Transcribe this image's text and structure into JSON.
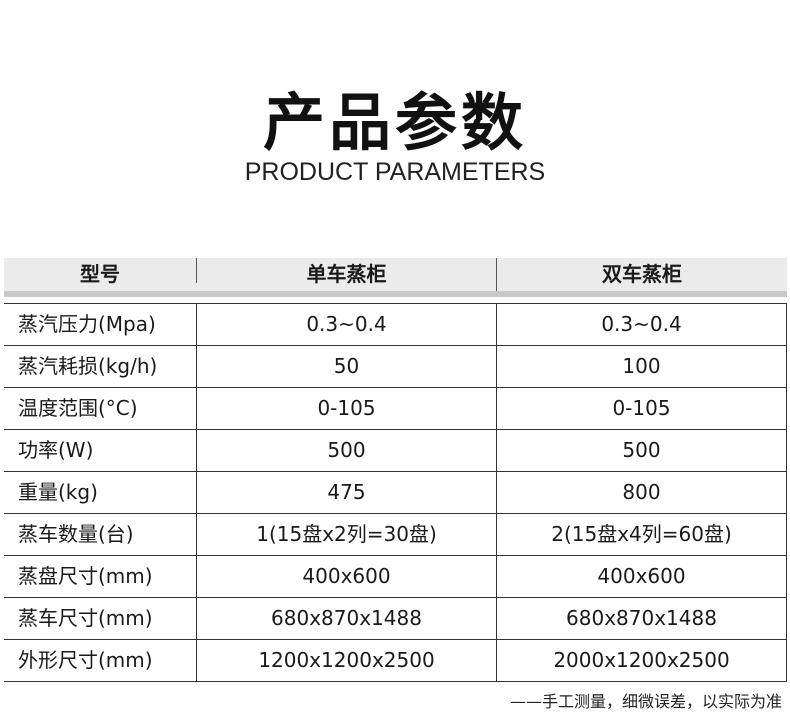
{
  "title": "产品参数",
  "subtitle": "PRODUCT PARAMETERS",
  "table": {
    "headers": [
      "型号",
      "单车蒸柜",
      "双车蒸柜"
    ],
    "rows": [
      [
        "蒸汽压力(Mpa)",
        "0.3~0.4",
        "0.3~0.4"
      ],
      [
        "蒸汽耗损(kg/h)",
        "50",
        "100"
      ],
      [
        "温度范围(°C)",
        "0-105",
        "0-105"
      ],
      [
        "功率(W)",
        "500",
        "500"
      ],
      [
        "重量(kg)",
        "475",
        "800"
      ],
      [
        "蒸车数量(台)",
        "1(15盘x2列=30盘)",
        "2(15盘x4列=60盘)"
      ],
      [
        "蒸盘尺寸(mm)",
        "400x600",
        "400x600"
      ],
      [
        "蒸车尺寸(mm)",
        "680x870x1488",
        "680x870x1488"
      ],
      [
        "外形尺寸(mm)",
        "1200x1200x2500",
        "2000x1200x2500"
      ]
    ]
  },
  "note": "——手工测量，细微误差，以实际为准"
}
